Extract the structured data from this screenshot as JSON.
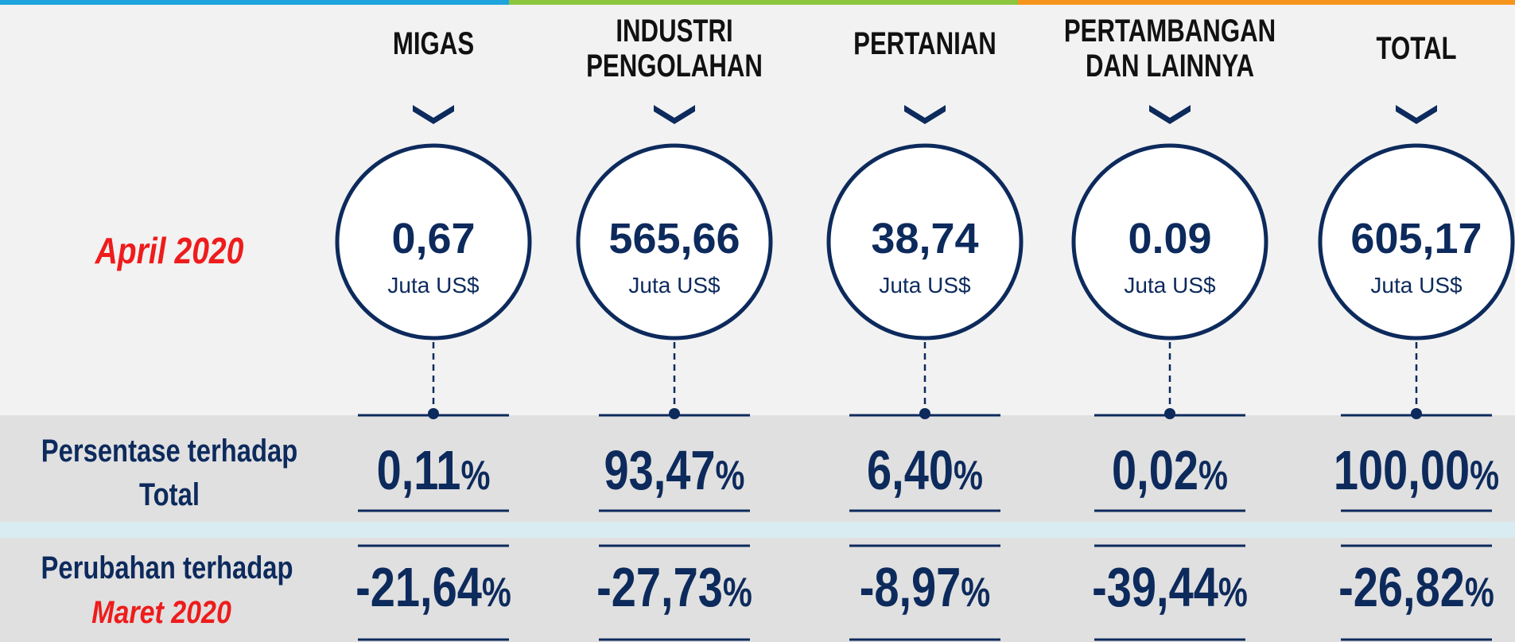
{
  "row_labels": {
    "april": "April 2020",
    "share_line1": "Persentase terhadap",
    "share_line2": "Total",
    "change_line1": "Perubahan terhadap",
    "change_line2": "Maret 2020"
  },
  "columns": [
    {
      "header": [
        "MIGAS"
      ],
      "value": "0,67",
      "unit": "Juta US$",
      "share": {
        "number": "0,11",
        "unit": "%"
      },
      "change": {
        "number": "-21,64",
        "unit": "%"
      }
    },
    {
      "header": [
        "INDUSTRI",
        "PENGOLAHAN"
      ],
      "value": "565,66",
      "unit": "Juta US$",
      "share": {
        "number": "93,47",
        "unit": "%"
      },
      "change": {
        "number": "-27,73",
        "unit": "%"
      }
    },
    {
      "header": [
        "PERTANIAN"
      ],
      "value": "38,74",
      "unit": "Juta US$",
      "share": {
        "number": "6,40",
        "unit": "%"
      },
      "change": {
        "number": "-8,97",
        "unit": "%"
      }
    },
    {
      "header": [
        "PERTAMBANGAN",
        "DAN LAINNYA"
      ],
      "value": "0.09",
      "unit": "Juta US$",
      "share": {
        "number": "0,02",
        "unit": "%"
      },
      "change": {
        "number": "-39,44",
        "unit": "%"
      }
    },
    {
      "header": [
        "TOTAL"
      ],
      "value": "605,17",
      "unit": "Juta US$",
      "share": {
        "number": "100,00",
        "unit": "%"
      },
      "change": {
        "number": "-26,82",
        "unit": "%"
      }
    }
  ]
}
